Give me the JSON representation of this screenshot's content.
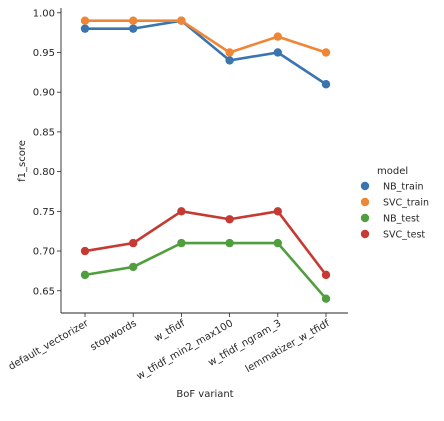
{
  "chart_data": {
    "type": "line",
    "xlabel": "BoF variant",
    "ylabel": "f1_score",
    "categories": [
      "default_vectorizer",
      "stopwords",
      "w_tfidf",
      "w_tfidf_min2_max100",
      "w_tfidf_ngram_3",
      "lemmatizer_w_tfidf"
    ],
    "ylim": [
      0.622,
      1.006
    ],
    "yticks": [
      0.65,
      0.7,
      0.75,
      0.8,
      0.85,
      0.9,
      0.95,
      1.0
    ],
    "ytick_labels": [
      "0.65",
      "0.70",
      "0.75",
      "0.80",
      "0.85",
      "0.90",
      "0.95",
      "1.00"
    ],
    "grid": false,
    "legend": {
      "title": "model",
      "placement": "right"
    },
    "series": [
      {
        "name": "NB_train",
        "color": "#3a75af",
        "values": [
          0.98,
          0.98,
          0.99,
          0.94,
          0.95,
          0.91
        ]
      },
      {
        "name": "SVC_train",
        "color": "#ef8636",
        "values": [
          0.99,
          0.99,
          0.99,
          0.95,
          0.97,
          0.95
        ]
      },
      {
        "name": "NB_test",
        "color": "#519e3e",
        "values": [
          0.67,
          0.68,
          0.71,
          0.71,
          0.71,
          0.64
        ]
      },
      {
        "name": "SVC_test",
        "color": "#c53a32",
        "values": [
          0.7,
          0.71,
          0.75,
          0.74,
          0.75,
          0.67
        ]
      }
    ]
  }
}
